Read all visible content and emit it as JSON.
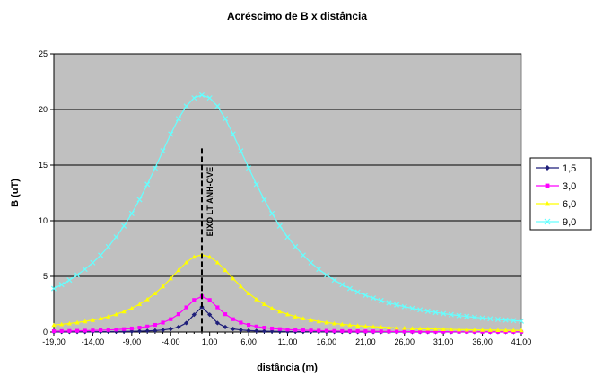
{
  "chart_data": {
    "type": "line",
    "title": "Acréscimo de B  x distância",
    "xlabel": "distância (m)",
    "ylabel": "B (uT)",
    "xlim": [
      -19,
      41
    ],
    "ylim": [
      0,
      25
    ],
    "x_ticks": [
      "-19,00",
      "-14,00",
      "-9,00",
      "-4,00",
      "1,00",
      "6,00",
      "11,00",
      "16,00",
      "21,00",
      "26,00",
      "31,00",
      "36,00",
      "41,00"
    ],
    "y_ticks": [
      "0",
      "5",
      "10",
      "15",
      "20",
      "25"
    ],
    "grid": true,
    "legend_position": "right",
    "annotation": {
      "text": "EIXO LT ANH-CVE",
      "x": 0,
      "y_top": 16.5
    },
    "series": [
      {
        "name": "1,5",
        "color": "#1f1f7a",
        "marker": "diamond",
        "peak": 2.25
      },
      {
        "name": "3,0",
        "color": "#ff00ff",
        "marker": "square",
        "peak": 3.2
      },
      {
        "name": "6,0",
        "color": "#ffff00",
        "marker": "triangle",
        "peak": 6.95
      },
      {
        "name": "9,0",
        "color": "#66ffff",
        "marker": "x",
        "peak": 21.3
      }
    ]
  }
}
